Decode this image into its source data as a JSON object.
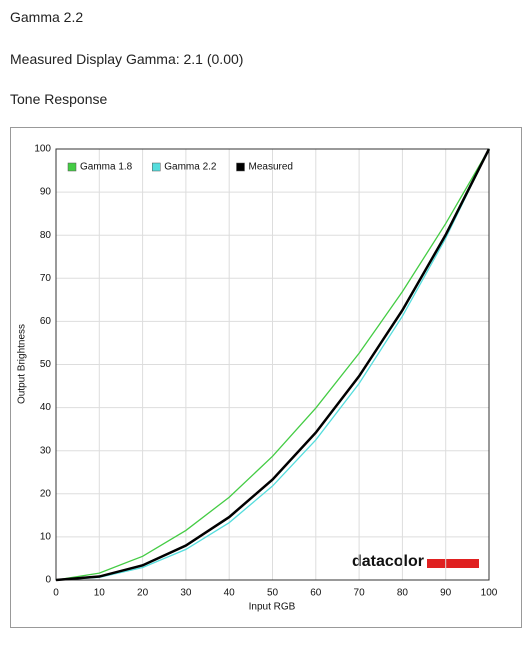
{
  "page": {
    "title": "Gamma 2.2",
    "measured": "Measured Display Gamma: 2.1 (0.00)",
    "section": "Tone Response",
    "logo": "datacolor"
  },
  "chart_data": {
    "type": "line",
    "xlabel": "Input RGB",
    "ylabel": "Output Brightness",
    "x": [
      0,
      10,
      20,
      30,
      40,
      50,
      60,
      70,
      80,
      90,
      100
    ],
    "series": [
      {
        "name": "Gamma 1.8",
        "color": "#44cc44",
        "values": [
          0,
          1.6,
          5.5,
          11.5,
          19.2,
          28.7,
          39.9,
          52.6,
          66.9,
          82.7,
          100
        ]
      },
      {
        "name": "Gamma 2.2",
        "color": "#55dddd",
        "values": [
          0,
          0.6,
          2.9,
          7.1,
          13.3,
          21.8,
          32.5,
          45.6,
          61.2,
          79.3,
          100
        ]
      },
      {
        "name": "Measured",
        "color": "#000000",
        "values": [
          0,
          0.8,
          3.4,
          8.0,
          14.6,
          23.3,
          34.2,
          47.3,
          62.6,
          80.1,
          100
        ]
      }
    ],
    "xlim": [
      0,
      100
    ],
    "xticks": [
      0,
      10,
      20,
      30,
      40,
      50,
      60,
      70,
      80,
      90,
      100
    ],
    "ylim": [
      0,
      100
    ],
    "yticks": [
      0,
      10,
      20,
      30,
      40,
      50,
      60,
      70,
      80,
      90,
      100
    ],
    "grid": true,
    "legend": "top-left"
  }
}
